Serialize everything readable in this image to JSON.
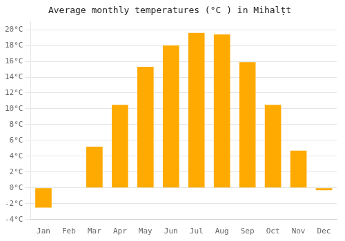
{
  "chart_data": {
    "type": "bar",
    "title": "Average monthly temperatures (°C ) in Mihalțt",
    "categories": [
      "Jan",
      "Feb",
      "Mar",
      "Apr",
      "May",
      "Jun",
      "Jul",
      "Aug",
      "Sep",
      "Oct",
      "Nov",
      "Dec"
    ],
    "values": [
      -2.5,
      0.0,
      5.2,
      10.5,
      15.3,
      18.0,
      19.6,
      19.4,
      15.9,
      10.5,
      4.7,
      -0.3
    ],
    "color": "#FFAA00",
    "ylim": [
      -4,
      21
    ],
    "yticks": [
      {
        "value": -4,
        "label": "-4°C"
      },
      {
        "value": -2,
        "label": "-2°C"
      },
      {
        "value": 0,
        "label": "0°C"
      },
      {
        "value": 2,
        "label": "2°C"
      },
      {
        "value": 4,
        "label": "4°C"
      },
      {
        "value": 6,
        "label": "6°C"
      },
      {
        "value": 8,
        "label": "8°C"
      },
      {
        "value": 10,
        "label": "10°C"
      },
      {
        "value": 12,
        "label": "12°C"
      },
      {
        "value": 14,
        "label": "14°C"
      },
      {
        "value": 16,
        "label": "16°C"
      },
      {
        "value": 18,
        "label": "18°C"
      },
      {
        "value": 20,
        "label": "20°C"
      }
    ],
    "grid": true
  }
}
